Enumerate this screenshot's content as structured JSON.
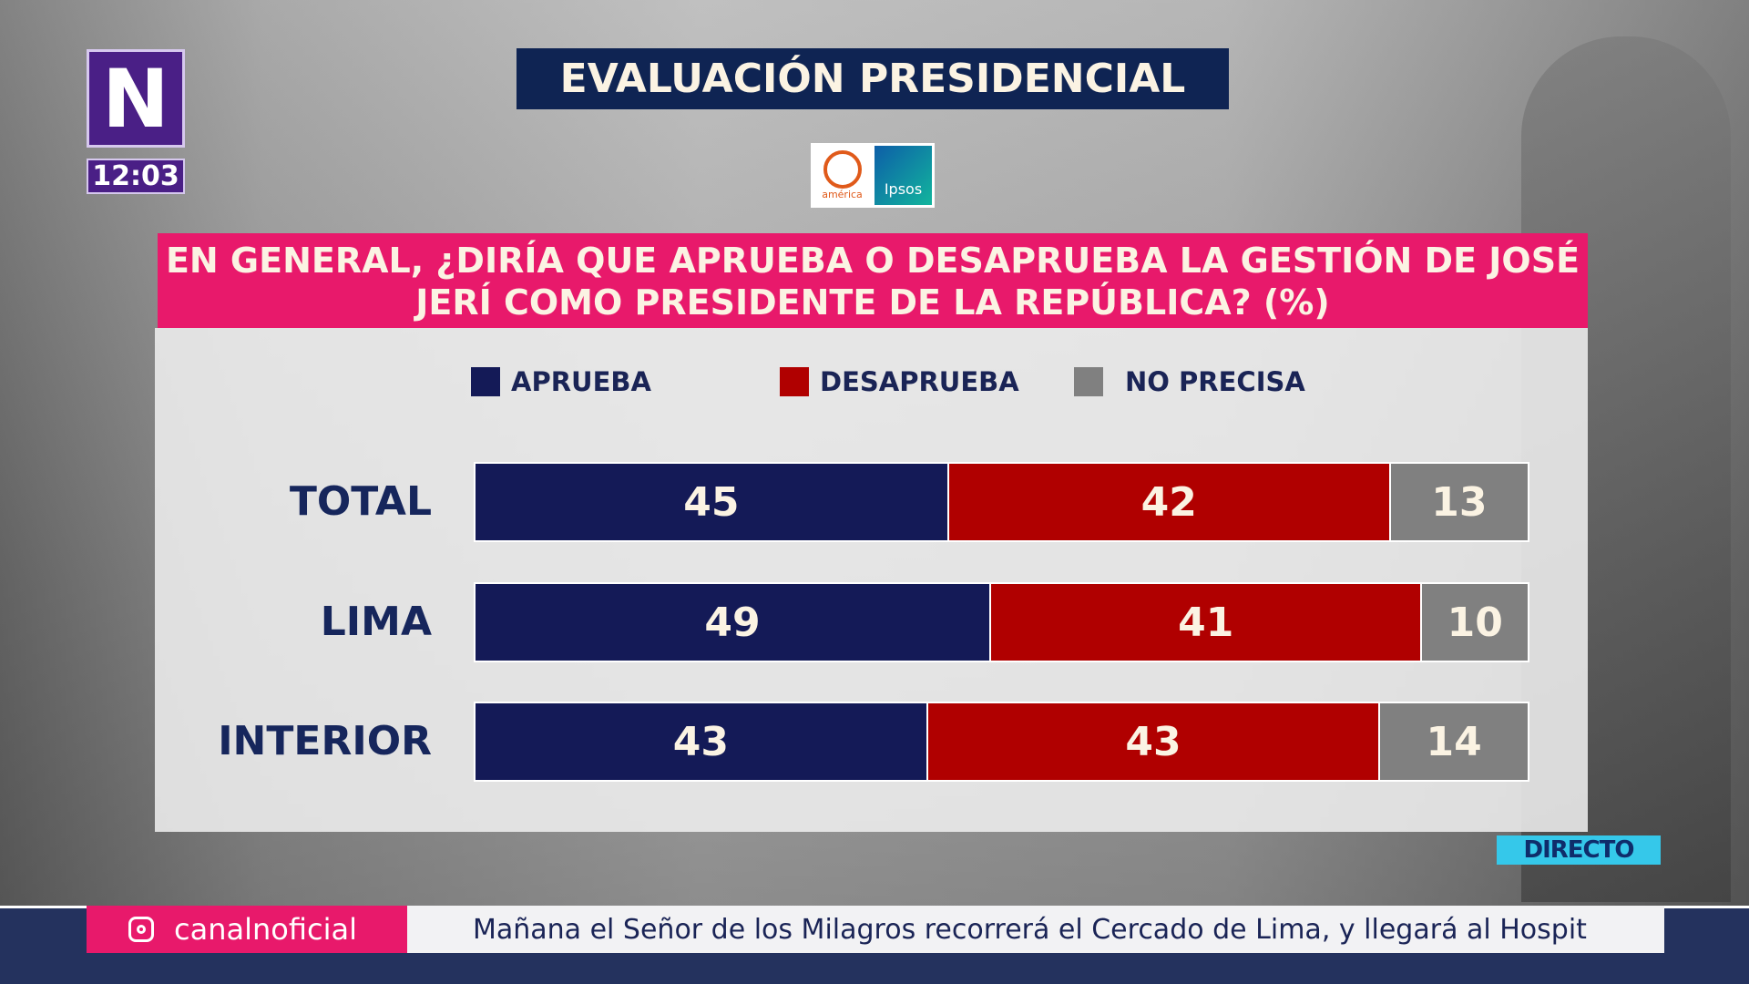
{
  "channel": {
    "logo_text": "N",
    "time": "12:03",
    "live_badge": "DIRECTO"
  },
  "title": "EVALUACIÓN PRESIDENCIAL",
  "sponsors": {
    "america": "américa",
    "ipsos": "Ipsos"
  },
  "question": "EN GENERAL, ¿DIRÍA QUE APRUEBA O DESAPRUEBA LA GESTIÓN DE JOSÉ JERÍ COMO PRESIDENTE DE LA REPÚBLICA? (%)",
  "chart_data": {
    "type": "bar",
    "stacked": true,
    "orientation": "horizontal",
    "categories": [
      "TOTAL",
      "LIMA",
      "INTERIOR"
    ],
    "series": [
      {
        "name": "APRUEBA",
        "color": "#141a57",
        "values": [
          45,
          49,
          43
        ]
      },
      {
        "name": "DESAPRUEBA",
        "color": "#b00000",
        "values": [
          42,
          41,
          43
        ]
      },
      {
        "name": "NO PRECISA",
        "color": "#808080",
        "values": [
          13,
          10,
          14
        ]
      }
    ],
    "legend": "top"
  },
  "ticker": {
    "handle": "canalnoficial",
    "text": "Mañana el Señor de los Milagros recorrerá el Cercado de Lima, y llegará al Hospit"
  }
}
